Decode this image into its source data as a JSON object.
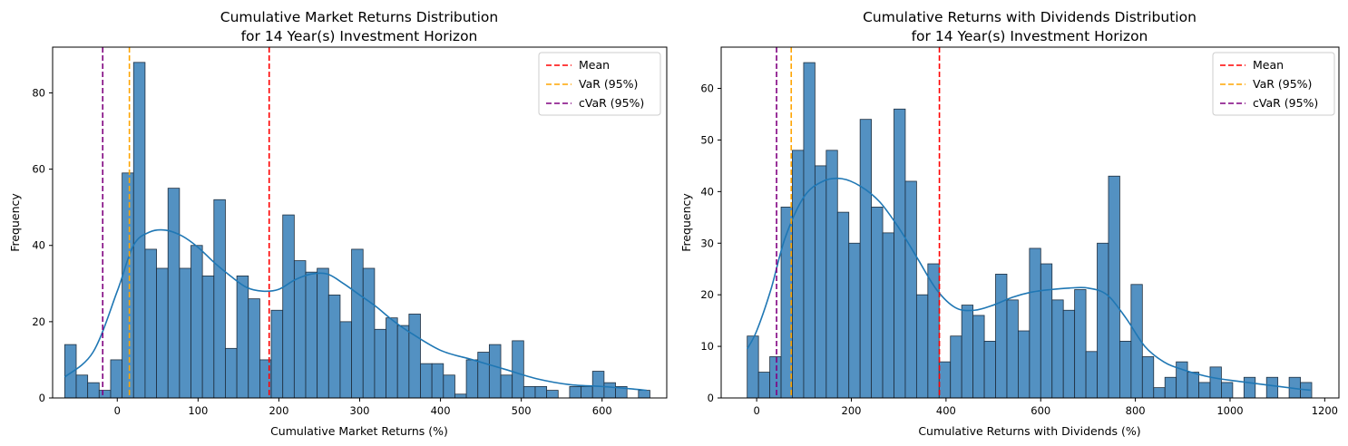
{
  "chart_data": [
    {
      "type": "histogram",
      "title_line1": "Cumulative Market Returns Distribution",
      "title_line2": "for 14 Year(s) Investment Horizon",
      "xlabel": "Cumulative Market Returns (%)",
      "ylabel": "Frequency",
      "xlim": [
        -80,
        680
      ],
      "ylim": [
        0,
        92
      ],
      "xticks": [
        0,
        100,
        200,
        300,
        400,
        500,
        600
      ],
      "yticks": [
        0,
        20,
        40,
        60,
        80
      ],
      "bins": {
        "start": -65,
        "width": 14.2,
        "counts": [
          14,
          6,
          4,
          2,
          10,
          59,
          88,
          39,
          34,
          55,
          34,
          40,
          32,
          52,
          13,
          32,
          26,
          10,
          23,
          48,
          36,
          33,
          34,
          27,
          20,
          39,
          34,
          18,
          21,
          19,
          22,
          9,
          9,
          6,
          1,
          10,
          12,
          14,
          6,
          15,
          3,
          3,
          2,
          0,
          3,
          3,
          7,
          4,
          3,
          0,
          2
        ]
      },
      "kde": {
        "x": [
          -65,
          -30,
          0,
          20,
          40,
          60,
          80,
          100,
          120,
          140,
          160,
          180,
          200,
          220,
          240,
          260,
          280,
          300,
          320,
          340,
          360,
          400,
          440,
          480,
          520,
          560,
          600,
          640,
          655
        ],
        "y": [
          5.5,
          12,
          28,
          40,
          43.5,
          44,
          42.5,
          39.5,
          35.5,
          32,
          29,
          28,
          28.5,
          31,
          32.5,
          32.5,
          30,
          27,
          24,
          20.5,
          17.5,
          12.5,
          10,
          7.5,
          5,
          3.5,
          3,
          2.3,
          2
        ]
      },
      "lines": [
        {
          "label": "Mean",
          "value": 188,
          "color": "#ff0000"
        },
        {
          "label": "VaR (95%)",
          "value": 15,
          "color": "#ffa500"
        },
        {
          "label": "cVaR (95%)",
          "value": -18,
          "color": "#800080"
        }
      ],
      "legend_position": "upper right",
      "grid": false
    },
    {
      "type": "histogram",
      "title_line1": "Cumulative Returns with Dividends Distribution",
      "title_line2": "for 14 Year(s) Investment Horizon",
      "xlabel": "Cumulative Returns with Dividends (%)",
      "ylabel": "Frequency",
      "xlim": [
        -75,
        1230
      ],
      "ylim": [
        0,
        68
      ],
      "xticks": [
        0,
        200,
        400,
        600,
        800,
        1000,
        1200
      ],
      "yticks": [
        0,
        10,
        20,
        30,
        40,
        50,
        60
      ],
      "bins": {
        "start": -20,
        "width": 23.85,
        "counts": [
          12,
          5,
          8,
          37,
          48,
          65,
          45,
          48,
          36,
          30,
          54,
          37,
          32,
          56,
          42,
          20,
          26,
          7,
          12,
          18,
          16,
          11,
          24,
          19,
          13,
          29,
          26,
          19,
          17,
          21,
          9,
          30,
          43,
          11,
          22,
          8,
          2,
          4,
          7,
          5,
          3,
          6,
          3,
          0,
          4,
          0,
          4,
          0,
          4,
          3
        ]
      },
      "kde": {
        "x": [
          -20,
          0,
          30,
          60,
          100,
          140,
          180,
          220,
          260,
          300,
          340,
          380,
          420,
          460,
          500,
          540,
          580,
          620,
          660,
          700,
          740,
          780,
          820,
          860,
          900,
          960,
          1020,
          1080,
          1140,
          1170
        ],
        "y": [
          9.5,
          13,
          21,
          31,
          39,
          42,
          42.5,
          41,
          38,
          33,
          27,
          21,
          17.5,
          17,
          18,
          19.5,
          20.5,
          21,
          21.3,
          21.3,
          20,
          15.5,
          10,
          7,
          5.5,
          4,
          3.2,
          2.5,
          1.8,
          1.5
        ]
      },
      "lines": [
        {
          "label": "Mean",
          "value": 386,
          "color": "#ff0000"
        },
        {
          "label": "VaR (95%)",
          "value": 73,
          "color": "#ffa500"
        },
        {
          "label": "cVaR (95%)",
          "value": 42,
          "color": "#800080"
        }
      ],
      "legend_position": "upper right",
      "grid": false
    }
  ],
  "colors": {
    "bar_fill": "#3b82b9",
    "bar_edge": "#1f2f3f",
    "kde": "#1f77b4"
  }
}
